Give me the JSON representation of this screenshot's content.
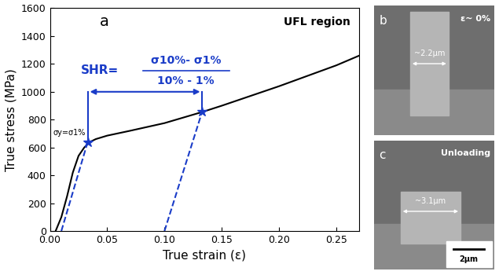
{
  "chart_data": {
    "type": "line",
    "panel_label": "a",
    "x_label": "True strain (ε)",
    "y_label": "True stress (MPa)",
    "annotations": {
      "region": "UFL region",
      "shr": "SHR=",
      "numerator": "σ10%- σ1%",
      "denominator": "10% - 1%",
      "yield": "σy=σ1%"
    },
    "x": [
      0.005,
      0.01,
      0.015,
      0.02,
      0.025,
      0.03,
      0.035,
      0.04,
      0.05,
      0.07,
      0.1,
      0.133,
      0.15,
      0.2,
      0.25,
      0.27
    ],
    "values": [
      0,
      100,
      250,
      420,
      540,
      600,
      640,
      660,
      685,
      720,
      775,
      855,
      900,
      1040,
      1190,
      1260
    ],
    "color": "#000000",
    "unloading_lines": [
      {
        "x": [
          0.01,
          0.033
        ],
        "values": [
          0,
          640
        ],
        "color": "#1a3cc8",
        "line_style": "dashed"
      },
      {
        "x": [
          0.1,
          0.133
        ],
        "values": [
          0,
          860
        ],
        "color": "#1a3cc8",
        "line_style": "dashed"
      }
    ],
    "points": {
      "x": [
        0.033,
        0.133
      ],
      "values": [
        640,
        860
      ],
      "color": "#1a3cc8",
      "marker": "star"
    },
    "range_arrow": {
      "x": [
        0.033,
        0.133
      ],
      "value": 1000,
      "color": "#1a3cc8"
    },
    "xlim": [
      0,
      0.27
    ],
    "xticks": [
      {
        "value": 0,
        "label": "0.00"
      },
      {
        "value": 0.05,
        "label": "0.05"
      },
      {
        "value": 0.1,
        "label": "0.10"
      },
      {
        "value": 0.15,
        "label": "0.15"
      },
      {
        "value": 0.2,
        "label": "0.20"
      },
      {
        "value": 0.25,
        "label": "0.25"
      }
    ],
    "ylim": [
      0,
      1600
    ],
    "yticks": [
      0,
      200,
      400,
      600,
      800,
      1000,
      1200,
      1400,
      1600
    ],
    "grid": false
  },
  "panels": [
    {
      "label": "b",
      "condition": "ε~ 0%",
      "width": "~2.2μm"
    },
    {
      "label": "c",
      "condition": "Unloading",
      "width": "~3.1μm",
      "scale_bar": "2μm"
    }
  ]
}
